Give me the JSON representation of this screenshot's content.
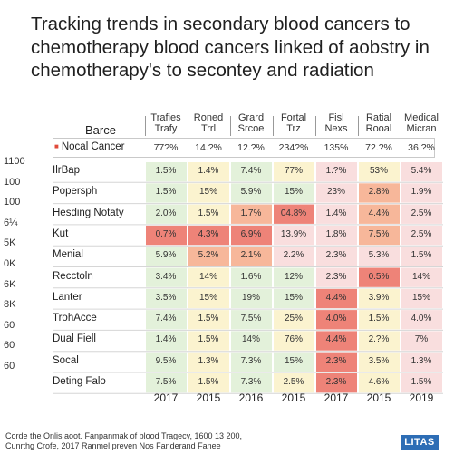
{
  "title_lines": [
    "Tracking trends in secondary blood cancers to",
    "chemotherapy blood cancers linked of aobstry in",
    "chemotherapy's to secontey and radiation"
  ],
  "corner_label": "Barce",
  "column_headers": [
    [
      "Trafies",
      "Trafy"
    ],
    [
      "Roned",
      "Trrl"
    ],
    [
      "Grard",
      "Srcoe"
    ],
    [
      "Fortal",
      "Trz"
    ],
    [
      "Fisl",
      "Nexs"
    ],
    [
      "Ratial",
      "Rooal"
    ],
    [
      "Medical",
      "Micran"
    ]
  ],
  "summary_row": {
    "label": "Nocal Cancer",
    "values": [
      "77?%",
      "14.?%",
      "12.?%",
      "234?%",
      "135%",
      "72.?%",
      "36.?%"
    ]
  },
  "y_axis_ticks": [
    "1100",
    "100",
    "100",
    "6¼",
    "5K",
    "0K",
    "6K",
    "8K",
    "60",
    "60",
    "60"
  ],
  "colors": {
    "green": "#e3f1da",
    "yellow": "#fbf3cf",
    "pink": "#f9dede",
    "orange": "#f7b79a",
    "red": "#ee8378"
  },
  "footnote_lines": [
    "Corde the Onlis aoot. Fanpanmak of blood Tragecy, 1600 13 200,",
    "Cunrthg Crofe, 2017 Ranmel preven Nos Fanderand Fanee"
  ],
  "logo_text": "LITAS",
  "chart_data": {
    "type": "heatmap",
    "title": "Tracking trends in secondary blood cancers to chemotherapy blood cancers linked of aobstry in chemotherapy's to secontey and radiation",
    "x": [
      "2017",
      "2015",
      "2016",
      "2015",
      "2017",
      "2015",
      "2019"
    ],
    "rows": [
      {
        "name": "IlrBap",
        "values": [
          "1.5%",
          "1.4%",
          "7.4%",
          "77%",
          "1.?%",
          "53%",
          "5.4%"
        ],
        "shades": [
          "green",
          "yellow",
          "green",
          "yellow",
          "pink",
          "yellow",
          "pink"
        ]
      },
      {
        "name": "Popersph",
        "values": [
          "1.5%",
          "15%",
          "5.9%",
          "15%",
          "23%",
          "2.8%",
          "1.9%"
        ],
        "shades": [
          "green",
          "yellow",
          "green",
          "green",
          "pink",
          "orange",
          "pink"
        ]
      },
      {
        "name": "Hesding Notaty",
        "values": [
          "2.0%",
          "1.5%",
          "1.7%",
          "04.8%",
          "1.4%",
          "4.4%",
          "2.5%"
        ],
        "shades": [
          "green",
          "yellow",
          "orange",
          "red",
          "pink",
          "orange",
          "pink"
        ]
      },
      {
        "name": "Kut",
        "values": [
          "0.7%",
          "4.3%",
          "6.9%",
          "13.9%",
          "1.8%",
          "7.5%",
          "2.5%"
        ],
        "shades": [
          "red",
          "red",
          "red",
          "pink",
          "pink",
          "orange",
          "pink"
        ]
      },
      {
        "name": "Menial",
        "values": [
          "5.9%",
          "5.2%",
          "2.1%",
          "2.2%",
          "2.3%",
          "5.3%",
          "1.5%"
        ],
        "shades": [
          "green",
          "orange",
          "orange",
          "pink",
          "pink",
          "pink",
          "pink"
        ]
      },
      {
        "name": "Recctoln",
        "values": [
          "3.4%",
          "14%",
          "1.6%",
          "12%",
          "2.3%",
          "0.5%",
          "14%"
        ],
        "shades": [
          "green",
          "yellow",
          "green",
          "green",
          "pink",
          "red",
          "pink"
        ]
      },
      {
        "name": "Lanter",
        "values": [
          "3.5%",
          "15%",
          "19%",
          "15%",
          "4.4%",
          "3.9%",
          "15%"
        ],
        "shades": [
          "green",
          "yellow",
          "green",
          "green",
          "red",
          "yellow",
          "pink"
        ]
      },
      {
        "name": "TrohAcce",
        "values": [
          "7.4%",
          "1.5%",
          "7.5%",
          "25%",
          "4.0%",
          "1.5%",
          "4.0%"
        ],
        "shades": [
          "green",
          "yellow",
          "green",
          "yellow",
          "red",
          "yellow",
          "pink"
        ]
      },
      {
        "name": "Dual Fiell",
        "values": [
          "1.4%",
          "1.5%",
          "14%",
          "76%",
          "4.4%",
          "2.?%",
          "7%"
        ],
        "shades": [
          "green",
          "yellow",
          "green",
          "yellow",
          "red",
          "yellow",
          "pink"
        ]
      },
      {
        "name": "Socal",
        "values": [
          "9.5%",
          "1.3%",
          "7.3%",
          "15%",
          "2.3%",
          "3.5%",
          "1.3%"
        ],
        "shades": [
          "green",
          "yellow",
          "green",
          "green",
          "red",
          "yellow",
          "pink"
        ]
      },
      {
        "name": "Deting Falo",
        "values": [
          "7.5%",
          "1.5%",
          "7.3%",
          "2.5%",
          "2.3%",
          "4.6%",
          "1.5%"
        ],
        "shades": [
          "green",
          "yellow",
          "green",
          "yellow",
          "red",
          "yellow",
          "pink"
        ]
      }
    ]
  }
}
